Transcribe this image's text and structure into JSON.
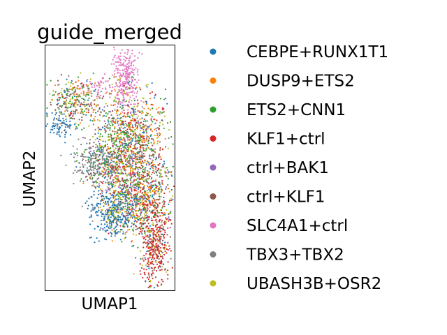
{
  "chart_data": {
    "type": "scatter",
    "title": "guide_merged",
    "xlabel": "UMAP1",
    "ylabel": "UMAP2",
    "grid": false,
    "ticks": false,
    "legend_placement": "right",
    "series": [
      {
        "name": "CEBPE+RUNX1T1",
        "color": "#1f77b4"
      },
      {
        "name": "DUSP9+ETS2",
        "color": "#ff7f0e"
      },
      {
        "name": "ETS2+CNN1",
        "color": "#2ca02c"
      },
      {
        "name": "KLF1+ctrl",
        "color": "#d62728"
      },
      {
        "name": "ctrl+BAK1",
        "color": "#9467bd"
      },
      {
        "name": "ctrl+KLF1",
        "color": "#8c564b"
      },
      {
        "name": "SLC4A1+ctrl",
        "color": "#e377c2"
      },
      {
        "name": "TBX3+TBX2",
        "color": "#7f7f7f"
      },
      {
        "name": "UBASH3B+OSR2",
        "color": "#bcbd22"
      }
    ]
  }
}
